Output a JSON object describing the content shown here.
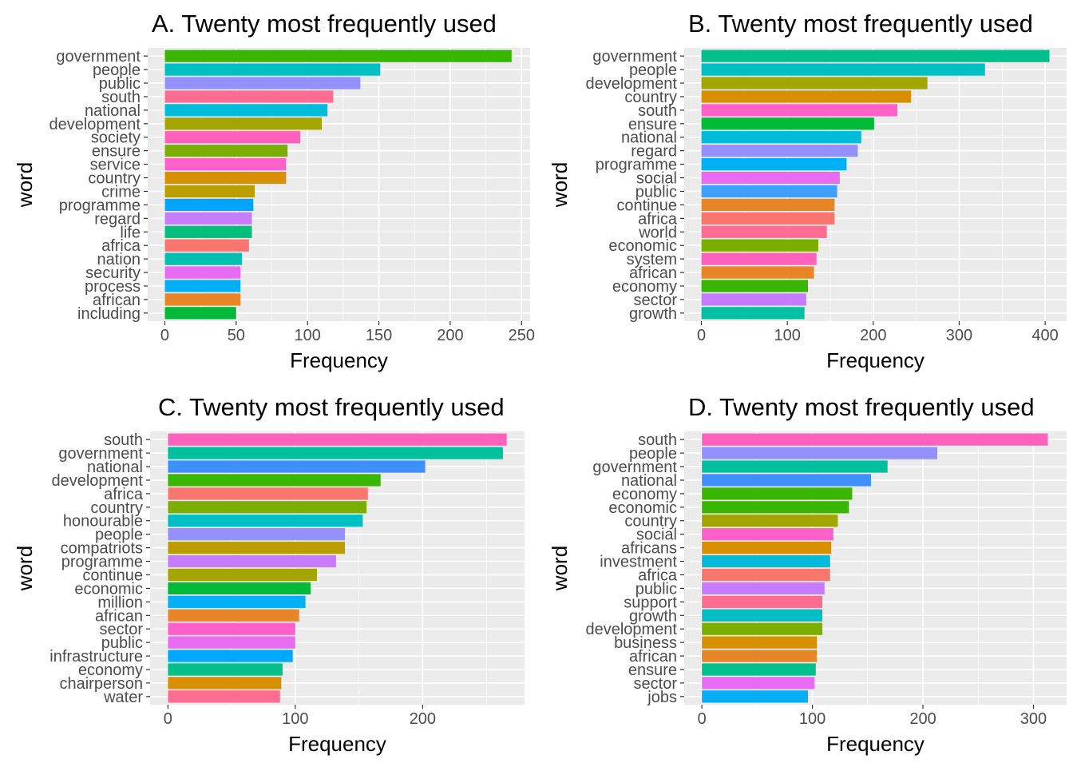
{
  "chart_data": [
    {
      "type": "bar",
      "orientation": "horizontal",
      "title": "A. Twenty most frequently used",
      "xlabel": "Frequency",
      "ylabel": "word",
      "xlim": [
        -12,
        256
      ],
      "xticks": [
        0,
        50,
        100,
        150,
        200,
        250
      ],
      "grid": true,
      "categories": [
        "government",
        "people",
        "public",
        "south",
        "national",
        "development",
        "society",
        "ensure",
        "service",
        "country",
        "crime",
        "programme",
        "regard",
        "life",
        "africa",
        "nation",
        "security",
        "process",
        "african",
        "including"
      ],
      "values": [
        243,
        151,
        137,
        118,
        114,
        110,
        95,
        86,
        85,
        85,
        63,
        62,
        61,
        61,
        59,
        54,
        53,
        53,
        53,
        50
      ],
      "colors": [
        "#39B600",
        "#00BFC4",
        "#9590FF",
        "#FF6C91",
        "#00BBDA",
        "#A3A500",
        "#FF62BC",
        "#7CAE00",
        "#FF61C9",
        "#D89000",
        "#BB9D00",
        "#00A5FF",
        "#C77CFF",
        "#00BF7D",
        "#F8766D",
        "#00C0AF",
        "#E76BF3",
        "#00B0F6",
        "#E88526",
        "#00BA38"
      ]
    },
    {
      "type": "bar",
      "orientation": "horizontal",
      "title": "B. Twenty most frequently used",
      "xlabel": "Frequency",
      "ylabel": "word",
      "xlim": [
        -20,
        425
      ],
      "xticks": [
        0,
        100,
        200,
        300,
        400
      ],
      "grid": true,
      "categories": [
        "government",
        "people",
        "development",
        "country",
        "south",
        "ensure",
        "national",
        "regard",
        "programme",
        "social",
        "public",
        "continue",
        "africa",
        "world",
        "economic",
        "system",
        "african",
        "economy",
        "sector",
        "growth"
      ],
      "values": [
        405,
        330,
        263,
        244,
        228,
        201,
        186,
        182,
        169,
        161,
        158,
        155,
        155,
        146,
        136,
        134,
        131,
        124,
        122,
        120
      ],
      "colors": [
        "#00C08B",
        "#00BFC4",
        "#A3A500",
        "#D89000",
        "#FF61C9",
        "#00BA38",
        "#00BBDA",
        "#9590FF",
        "#00B0F6",
        "#E76BF3",
        "#3FA0FF",
        "#E88526",
        "#F8766D",
        "#FF6C91",
        "#7CAE00",
        "#FF62BC",
        "#E88526",
        "#39B600",
        "#C77CFF",
        "#00C1A3"
      ]
    },
    {
      "type": "bar",
      "orientation": "horizontal",
      "title": "C. Twenty most frequently used",
      "xlabel": "Frequency",
      "ylabel": "word",
      "xlim": [
        -14,
        280
      ],
      "xticks": [
        0,
        100,
        200
      ],
      "grid": true,
      "categories": [
        "south",
        "government",
        "national",
        "development",
        "africa",
        "country",
        "honourable",
        "people",
        "compatriots",
        "programme",
        "continue",
        "economic",
        "million",
        "african",
        "sector",
        "public",
        "infrastructure",
        "economy",
        "chairperson",
        "water"
      ],
      "values": [
        266,
        263,
        202,
        167,
        157,
        156,
        153,
        139,
        139,
        132,
        117,
        112,
        108,
        103,
        100,
        100,
        98,
        90,
        89,
        88
      ],
      "colors": [
        "#FF62BC",
        "#00BF9D",
        "#3F8FFF",
        "#39B600",
        "#F8766D",
        "#7CAE00",
        "#00BFC4",
        "#9590FF",
        "#BB9D00",
        "#C77CFF",
        "#A3A500",
        "#00BA38",
        "#00B0F6",
        "#E88526",
        "#FF61C9",
        "#E76BF3",
        "#00A9FF",
        "#00C08B",
        "#D89000",
        "#FF6C91"
      ]
    },
    {
      "type": "bar",
      "orientation": "horizontal",
      "title": "D. Twenty most frequently used",
      "xlabel": "Frequency",
      "ylabel": "word",
      "xlim": [
        -16,
        330
      ],
      "xticks": [
        0,
        100,
        200,
        300
      ],
      "grid": true,
      "categories": [
        "south",
        "people",
        "government",
        "national",
        "economy",
        "economic",
        "country",
        "social",
        "africans",
        "investment",
        "africa",
        "public",
        "support",
        "growth",
        "development",
        "business",
        "african",
        "ensure",
        "sector",
        "jobs"
      ],
      "values": [
        313,
        213,
        168,
        153,
        136,
        133,
        123,
        119,
        117,
        116,
        116,
        111,
        109,
        109,
        109,
        104,
        104,
        103,
        102,
        96
      ],
      "colors": [
        "#FF62BC",
        "#9590FF",
        "#00BF9D",
        "#3F8FFF",
        "#39B600",
        "#39B600",
        "#A3A500",
        "#FF61C9",
        "#D89000",
        "#00BBDA",
        "#F8766D",
        "#C77CFF",
        "#FF6C91",
        "#00BFC4",
        "#7CAE00",
        "#D89000",
        "#E88526",
        "#00C08B",
        "#E76BF3",
        "#00B0F6"
      ]
    }
  ]
}
